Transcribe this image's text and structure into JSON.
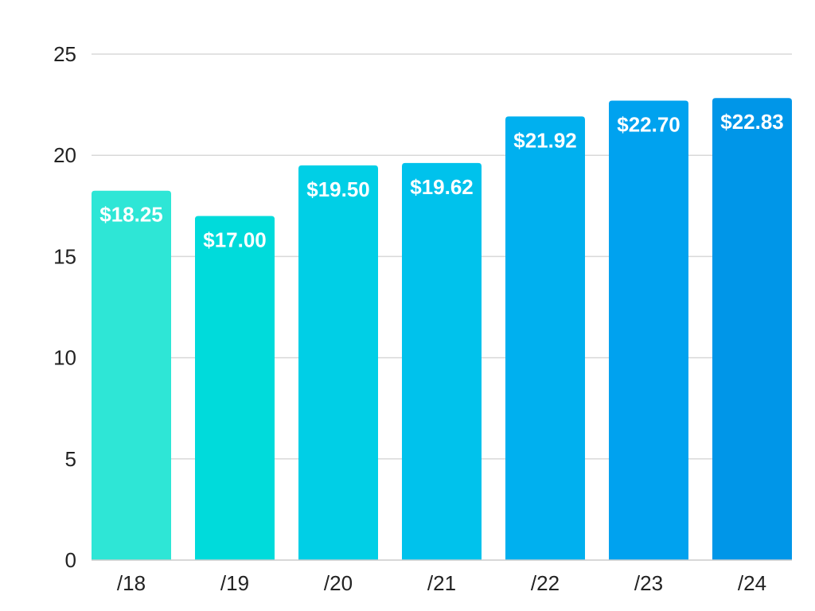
{
  "chart_data": {
    "type": "bar",
    "categories": [
      "/18",
      "/19",
      "/20",
      "/21",
      "/22",
      "/23",
      "/24"
    ],
    "values": [
      18.25,
      17.0,
      19.5,
      19.62,
      21.92,
      22.7,
      22.83
    ],
    "data_labels": [
      "$18.25",
      "$17.00",
      "$19.50",
      "$19.62",
      "$21.92",
      "$22.70",
      "$22.83"
    ],
    "bar_colors": [
      "#2ee6d6",
      "#00dbdb",
      "#00cfe6",
      "#00c2ec",
      "#00b0ef",
      "#00a2ef",
      "#0096e8"
    ],
    "title": "",
    "xlabel": "",
    "ylabel": "",
    "ylim": [
      0,
      25
    ],
    "y_ticks": [
      0,
      5,
      10,
      15,
      20,
      25
    ],
    "y_tick_labels": [
      "0",
      "5",
      "10",
      "15",
      "20",
      "25"
    ],
    "grid": true,
    "legend": "none",
    "gridline_color": "#d9d9d9",
    "label_color": "#ffffff"
  }
}
